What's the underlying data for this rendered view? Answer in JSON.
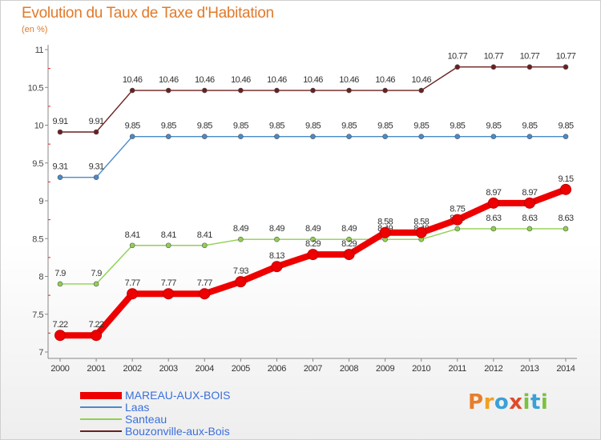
{
  "chart_data": {
    "type": "line",
    "title": "Evolution du Taux de Taxe d'Habitation",
    "subtitle": "(en %)",
    "xlabel": "",
    "ylabel": "",
    "x": [
      "2000",
      "2001",
      "2002",
      "2003",
      "2004",
      "2005",
      "2006",
      "2007",
      "2008",
      "2009",
      "2010",
      "2011",
      "2012",
      "2013",
      "2014"
    ],
    "ylim": [
      7,
      11
    ],
    "yticks": [
      "7",
      "7.5",
      "8",
      "8.5",
      "9",
      "9.5",
      "10",
      "10.5",
      "11"
    ],
    "grid": false,
    "legend_position": "bottom-left",
    "series": [
      {
        "name": "Bouzonville-aux-Bois",
        "color": "#6b1f1f",
        "values": [
          9.91,
          9.91,
          10.46,
          10.46,
          10.46,
          10.46,
          10.46,
          10.46,
          10.46,
          10.46,
          10.46,
          10.77,
          10.77,
          10.77,
          10.77
        ],
        "labels": [
          "9.91",
          "9.91",
          "10.46",
          "10.46",
          "10.46",
          "10.46",
          "10.46",
          "10.46",
          "10.46",
          "10.46",
          "10.46",
          "10.77",
          "10.77",
          "10.77",
          "10.77"
        ]
      },
      {
        "name": "Laas",
        "color": "#4a8ac9",
        "values": [
          9.31,
          9.31,
          9.85,
          9.85,
          9.85,
          9.85,
          9.85,
          9.85,
          9.85,
          9.85,
          9.85,
          9.85,
          9.85,
          9.85,
          9.85
        ],
        "labels": [
          "9.31",
          "9.31",
          "9.85",
          "9.85",
          "9.85",
          "9.85",
          "9.85",
          "9.85",
          "9.85",
          "9.85",
          "9.85",
          "9.85",
          "9.85",
          "9.85",
          "9.85"
        ]
      },
      {
        "name": "Santeau",
        "color": "#8fd14f",
        "values": [
          7.9,
          7.9,
          8.41,
          8.41,
          8.41,
          8.49,
          8.49,
          8.49,
          8.49,
          8.49,
          8.49,
          8.63,
          8.63,
          8.63,
          8.63
        ],
        "labels": [
          "7.9",
          "7.9",
          "8.41",
          "8.41",
          "8.41",
          "8.49",
          "8.49",
          "8.49",
          "8.49",
          "8.49",
          "8.49",
          "8.63",
          "8.63",
          "8.63",
          "8.63"
        ]
      },
      {
        "name": "MAREAU-AUX-BOIS",
        "color": "#ee0000",
        "values": [
          7.22,
          7.22,
          7.77,
          7.77,
          7.77,
          7.93,
          8.13,
          8.29,
          8.29,
          8.58,
          8.58,
          8.75,
          8.97,
          8.97,
          9.15
        ],
        "labels": [
          "7.22",
          "7.22",
          "7.77",
          "7.77",
          "7.77",
          "7.93",
          "8.13",
          "8.29",
          "8.29",
          "8.58",
          "8.58",
          "8.75",
          "8.97",
          "8.97",
          "9.15"
        ]
      }
    ],
    "legend": [
      "MAREAU-AUX-BOIS",
      "Laas",
      "Santeau",
      "Bouzonville-aux-Bois"
    ]
  },
  "logo": {
    "text": "Proxiti",
    "letters": [
      {
        "ch": "P",
        "color": "#e87e2a"
      },
      {
        "ch": "r",
        "color": "#f0a020"
      },
      {
        "ch": "o",
        "color": "#3aa0d8"
      },
      {
        "ch": "x",
        "color": "#e04a2a"
      },
      {
        "ch": "i",
        "color": "#7cc142"
      },
      {
        "ch": "t",
        "color": "#3aa0d8"
      },
      {
        "ch": "i",
        "color": "#7cc142"
      }
    ]
  }
}
